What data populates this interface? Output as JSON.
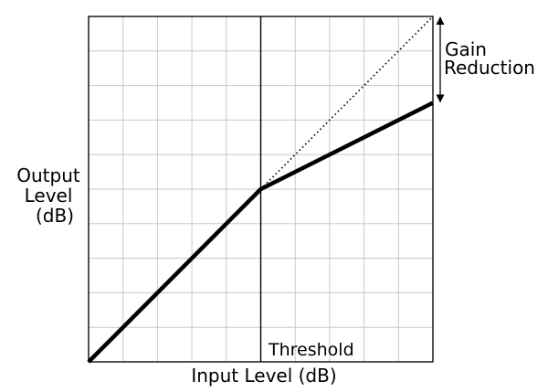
{
  "chart_data": {
    "type": "line",
    "title": "",
    "xlabel": "Input Level (dB)",
    "ylabel_lines": [
      "Output",
      "Level",
      "(dB)"
    ],
    "xlim": [
      0,
      10
    ],
    "ylim": [
      0,
      10
    ],
    "grid": true,
    "grid_divisions": 10,
    "threshold": {
      "x": 5,
      "label": "Threshold"
    },
    "series": [
      {
        "points": [
          [
            0,
            0
          ],
          [
            5,
            5
          ],
          [
            10,
            7.5
          ]
        ],
        "style": "thick-solid"
      },
      {
        "points": [
          [
            5,
            5
          ],
          [
            10,
            10
          ]
        ],
        "style": "dotted"
      }
    ],
    "annotations": {
      "gain_reduction": {
        "lines": [
          "Gain",
          "Reduction"
        ],
        "x": 10,
        "from_y": 7.5,
        "to_y": 10
      }
    }
  },
  "colors": {
    "line": "#000000",
    "grid": "#c8c8c8",
    "frame": "#1a1a1a",
    "background": "#ffffff"
  }
}
